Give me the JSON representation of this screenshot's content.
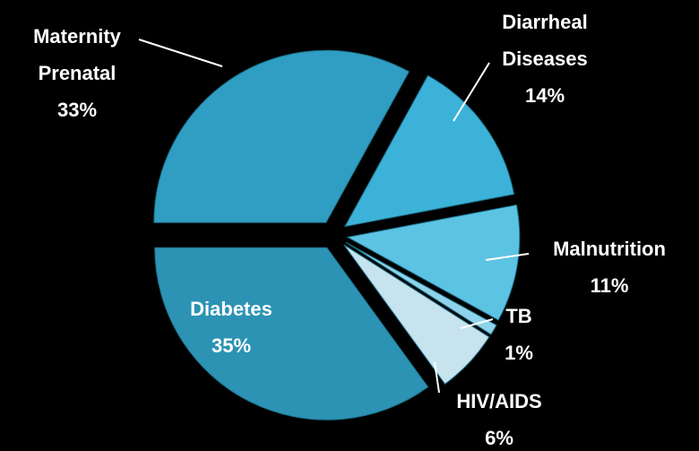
{
  "chart_data": {
    "type": "pie",
    "categories": [
      "Maternity Prenatal",
      "Diarrheal Diseases",
      "Malnutrition",
      "TB",
      "HIV/AIDS",
      "Diabetes"
    ],
    "values": [
      33,
      14,
      11,
      1,
      6,
      35
    ],
    "value_labels": [
      "33%",
      "14%",
      "11%",
      "1%",
      "6%",
      "35%"
    ],
    "colors": [
      "#2f9ec2",
      "#3cb2d8",
      "#5cc3e3",
      "#8ed3ea",
      "#c6e3ee",
      "#2c93b4"
    ]
  }
}
